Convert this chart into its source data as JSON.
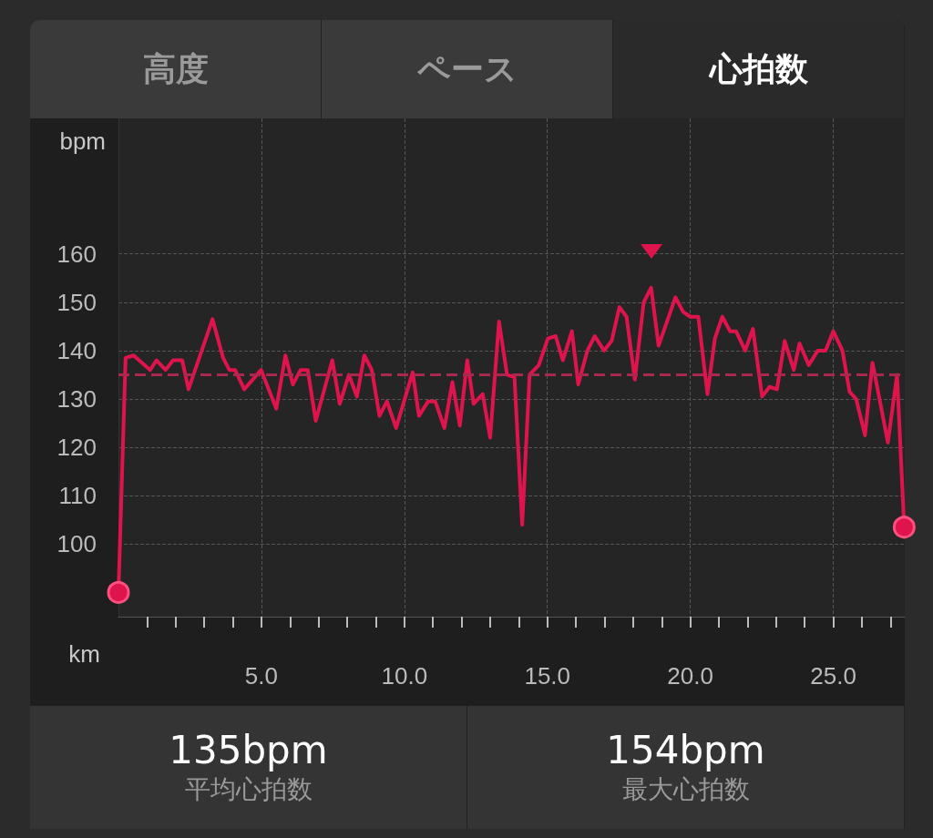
{
  "chart_data": {
    "type": "line",
    "annotations": [
      "高度",
      "ペース",
      "心拍数",
      "135bpm",
      "平均心拍数",
      "154bpm",
      "最大心拍数"
    ],
    "xlabel": "km",
    "ylabel": "bpm",
    "x": [
      0,
      0.25,
      0.53,
      1.11,
      1.33,
      1.65,
      1.91,
      2.23,
      2.45,
      3.29,
      3.66,
      3.88,
      4.08,
      4.4,
      4.99,
      5.52,
      5.84,
      6.1,
      6.37,
      6.62,
      6.9,
      7.48,
      7.74,
      8.06,
      8.34,
      8.6,
      8.86,
      9.13,
      9.39,
      9.71,
      10.29,
      10.51,
      10.83,
      11.08,
      11.4,
      11.68,
      11.94,
      12.2,
      12.42,
      12.74,
      13.0,
      13.31,
      13.59,
      13.85,
      14.12,
      14.38,
      14.7,
      15.02,
      15.29,
      15.54,
      15.86,
      16.08,
      16.4,
      16.66,
      16.98,
      17.25,
      17.52,
      17.77,
      18.06,
      18.37,
      18.63,
      18.89,
      19.48,
      19.75,
      20.0,
      20.28,
      20.6,
      20.86,
      21.12,
      21.39,
      21.6,
      21.92,
      22.19,
      22.51,
      22.77,
      23.03,
      23.3,
      23.62,
      23.82,
      24.14,
      24.46,
      24.73,
      25.0,
      25.32,
      25.57,
      25.8,
      26.11,
      26.37,
      26.65,
      26.91,
      27.23,
      27.48
    ],
    "series": [
      {
        "color": "#e0144c",
        "values": [
          90,
          138.5,
          139,
          136,
          138,
          136,
          138,
          138,
          132,
          146.5,
          138.5,
          136,
          136,
          132,
          136,
          128,
          139,
          133,
          136,
          136,
          125.5,
          138,
          129,
          135,
          130.5,
          139,
          136,
          126.5,
          129.5,
          124,
          135.5,
          126.5,
          129.5,
          129.5,
          124,
          133.5,
          124.5,
          138,
          129,
          131,
          122,
          146,
          135,
          134.5,
          104,
          135,
          137,
          142.5,
          143,
          138,
          144,
          133,
          140,
          143,
          140,
          142,
          149,
          147,
          134,
          150,
          153,
          141,
          151,
          148,
          147,
          147,
          131,
          142.5,
          147,
          144,
          144,
          140,
          144.5,
          130.5,
          132.5,
          132,
          142,
          136,
          141.5,
          137,
          140,
          140,
          144,
          140,
          131.5,
          130,
          122.5,
          137.5,
          129,
          121,
          135,
          103.5
        ]
      }
    ],
    "xlim": [
      0,
      27.5
    ],
    "xticks": [
      {
        "value": 1,
        "label": null
      },
      {
        "value": 2,
        "label": null
      },
      {
        "value": 3,
        "label": null
      },
      {
        "value": 4,
        "label": null
      },
      {
        "value": 5,
        "label": "5.0"
      },
      {
        "value": 6,
        "label": null
      },
      {
        "value": 7,
        "label": null
      },
      {
        "value": 8,
        "label": null
      },
      {
        "value": 9,
        "label": null
      },
      {
        "value": 10,
        "label": "10.0"
      },
      {
        "value": 11,
        "label": null
      },
      {
        "value": 12,
        "label": null
      },
      {
        "value": 13,
        "label": null
      },
      {
        "value": 14,
        "label": null
      },
      {
        "value": 15,
        "label": "15.0"
      },
      {
        "value": 16,
        "label": null
      },
      {
        "value": 17,
        "label": null
      },
      {
        "value": 18,
        "label": null
      },
      {
        "value": 19,
        "label": null
      },
      {
        "value": 20,
        "label": "20.0"
      },
      {
        "value": 21,
        "label": null
      },
      {
        "value": 22,
        "label": null
      },
      {
        "value": 23,
        "label": null
      },
      {
        "value": 24,
        "label": null
      },
      {
        "value": 25,
        "label": "25.0"
      },
      {
        "value": 26,
        "label": null
      },
      {
        "value": 27,
        "label": null
      }
    ],
    "ylim": [
      85,
      188
    ],
    "yticks": [
      100,
      110,
      120,
      130,
      140,
      150,
      160
    ],
    "ref_lines": [
      {
        "axis": "y",
        "value": 135,
        "color": "#a8284e",
        "line_style": "dashed"
      }
    ],
    "grid": true,
    "line_style": "solid"
  }
}
